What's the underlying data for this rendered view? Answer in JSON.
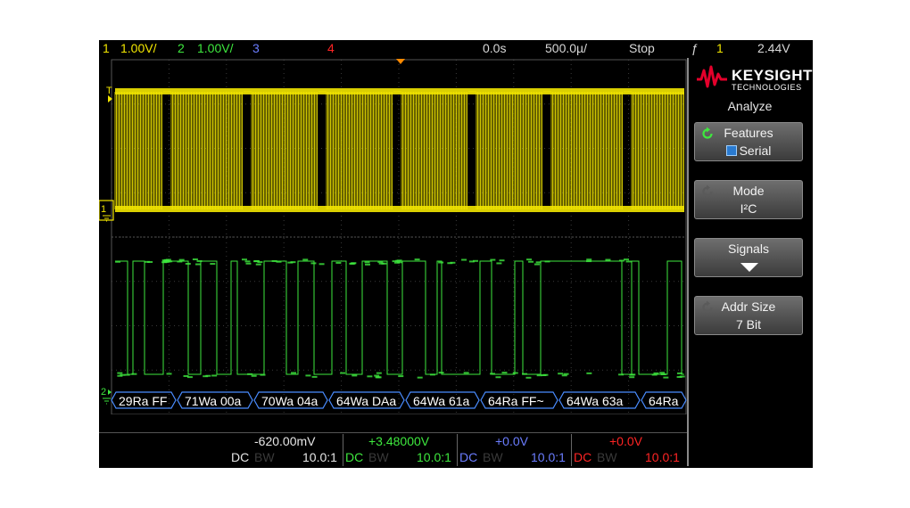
{
  "topbar": {
    "ch1_num": "1",
    "ch1_scale": "1.00V/",
    "ch2_num": "2",
    "ch2_scale": "1.00V/",
    "ch3_num": "3",
    "ch4_num": "4",
    "time_delay": "0.0s",
    "time_scale": "500.0µ/",
    "run_state": "Stop",
    "trigger_slope": "ƒ",
    "trigger_source": "1",
    "trigger_level": "2.44V"
  },
  "markers": {
    "trigger_level_marker": "T",
    "ch1_ground_marker": "1",
    "ch2_ground_marker": "2"
  },
  "decode": {
    "packets": [
      "29Ra FF",
      "71Wa 00a",
      "70Wa 04a",
      "64Wa DAa",
      "64Wa 61a",
      "64Ra FF~",
      "64Wa 63a",
      "64Ra"
    ]
  },
  "brand": {
    "name": "KEYSIGHT",
    "sub": "TECHNOLOGIES"
  },
  "panel": {
    "title": "Analyze",
    "softkeys": [
      {
        "label": "Features",
        "value": "Serial",
        "icon": "rotate-icon"
      },
      {
        "label": "Mode",
        "value": "I²C",
        "icon": "rotate-icon"
      },
      {
        "label": "Signals",
        "value": "",
        "icon": "arrow-down-icon"
      },
      {
        "label": "Addr Size",
        "value": "7 Bit",
        "icon": "rotate-icon"
      }
    ]
  },
  "bottom": {
    "ch1": {
      "offset": "-620.00mV",
      "coupling": "DC",
      "bw": "BW",
      "probe": "10.0:1"
    },
    "ch2": {
      "offset": "+3.48000V",
      "coupling": "DC",
      "bw": "BW",
      "probe": "10.0:1"
    },
    "ch3": {
      "offset": "+0.0V",
      "coupling": "DC",
      "bw": "BW",
      "probe": "10.0:1"
    },
    "ch4": {
      "offset": "+0.0V",
      "coupling": "DC",
      "bw": "BW",
      "probe": "10.0:1"
    }
  },
  "colors": {
    "ch1": "#f2e600",
    "ch2": "#3ee83e",
    "ch3": "#6b7dff",
    "ch4": "#ff2424",
    "decode": "#9fd0ff",
    "background": "#000000",
    "grid": "#3a3a3a"
  }
}
